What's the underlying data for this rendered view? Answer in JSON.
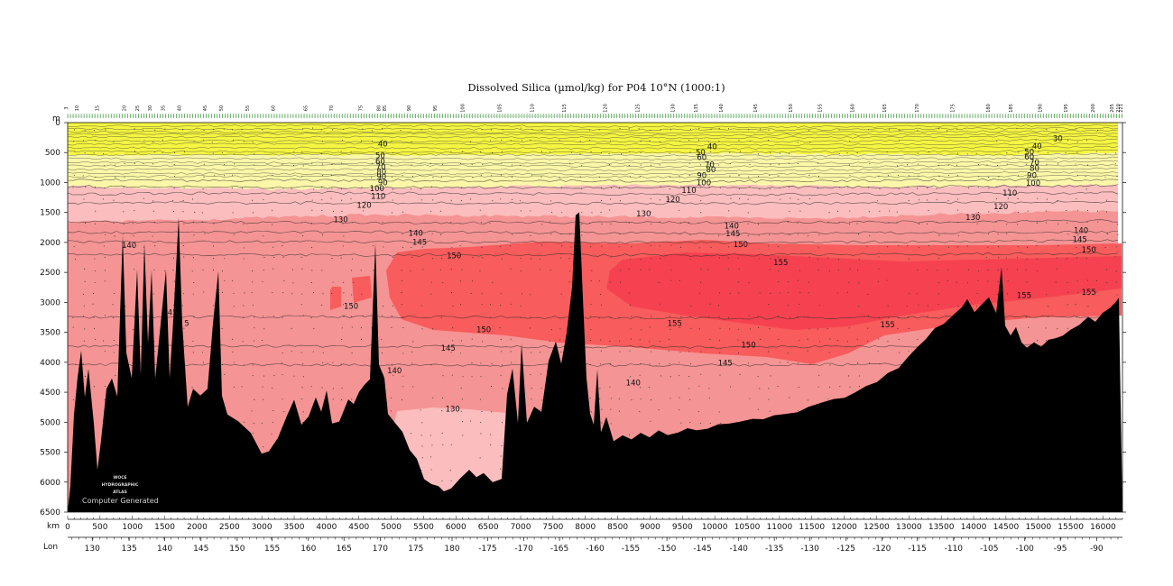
{
  "chart_data": {
    "type": "heatmap",
    "title": "Dissolved Silica (µmol/kg) for P04 10°N (1000:1)",
    "depth_unit": "m",
    "ylim": [
      0,
      6500
    ],
    "depth_ticks": [
      "0",
      "500",
      "1000",
      "1500",
      "2000",
      "2500",
      "3000",
      "3500",
      "4000",
      "4500",
      "5000",
      "5500",
      "6000",
      "6500"
    ],
    "depth_tick_values": [
      0,
      500,
      1000,
      1500,
      2000,
      2500,
      3000,
      3500,
      4000,
      4500,
      5000,
      5500,
      6000,
      6500
    ],
    "xlabel_km": "km",
    "xlim_km": [
      0,
      16300
    ],
    "km_ticks": [
      "0",
      "500",
      "1000",
      "1500",
      "2000",
      "2500",
      "3000",
      "3500",
      "4000",
      "4500",
      "5000",
      "5500",
      "6000",
      "6500",
      "7000",
      "7500",
      "8000",
      "8500",
      "9000",
      "9500",
      "10000",
      "10500",
      "11000",
      "11500",
      "12000",
      "12500",
      "13000",
      "13500",
      "14000",
      "14500",
      "15000",
      "15500",
      "16000"
    ],
    "km_tick_values": [
      0,
      500,
      1000,
      1500,
      2000,
      2500,
      3000,
      3500,
      4000,
      4500,
      5000,
      5500,
      6000,
      6500,
      7000,
      7500,
      8000,
      8500,
      9000,
      9500,
      10000,
      10500,
      11000,
      11500,
      12000,
      12500,
      13000,
      13500,
      14000,
      14500,
      15000,
      15500,
      16000
    ],
    "xlabel_lon": "Lon",
    "lon_ticks": [
      "130",
      "135",
      "140",
      "145",
      "150",
      "155",
      "160",
      "165",
      "170",
      "175",
      "180",
      "-175",
      "-170",
      "-165",
      "-160",
      "-155",
      "-150",
      "-145",
      "-140",
      "-135",
      "-130",
      "-125",
      "-120",
      "-115",
      "-110",
      "-105",
      "-100",
      "-95",
      "-90"
    ],
    "lon_tick_km": [
      380,
      950,
      1500,
      2060,
      2620,
      3160,
      3720,
      4270,
      4830,
      5380,
      5940,
      6490,
      7050,
      7600,
      8150,
      8700,
      9260,
      9810,
      10370,
      10920,
      11470,
      12030,
      12580,
      13130,
      13690,
      14240,
      14790,
      15340,
      15900
    ],
    "stations": [
      "3",
      "10",
      "15",
      "20",
      "25",
      "30",
      "35",
      "40",
      "45",
      "50",
      "55",
      "60",
      "65",
      "70",
      "75",
      "80",
      "85",
      "90",
      "95",
      "100",
      "105",
      "110",
      "115",
      "120",
      "125",
      "130",
      "135",
      "140",
      "145",
      "150",
      "155",
      "160",
      "165",
      "170",
      "175",
      "180",
      "185",
      "190",
      "195",
      "200",
      "205",
      "210",
      "221"
    ],
    "station_km": [
      0,
      170,
      480,
      900,
      1100,
      1300,
      1500,
      1750,
      2150,
      2400,
      2800,
      3200,
      3700,
      4100,
      4550,
      4830,
      4920,
      5300,
      5700,
      6130,
      6700,
      7200,
      7700,
      8330,
      8830,
      9380,
      9730,
      10120,
      10650,
      11200,
      11650,
      12150,
      12650,
      13150,
      13700,
      14250,
      14600,
      15050,
      15450,
      15870,
      16160,
      16260,
      16300
    ],
    "contour_levels": [
      0,
      10,
      20,
      30,
      40,
      50,
      60,
      70,
      80,
      90,
      100,
      110,
      120,
      130,
      140,
      145,
      150,
      155
    ],
    "color_bands": [
      {
        "range": "0-50",
        "color": "#f5f542"
      },
      {
        "range": "50-100",
        "color": "#fbf7a8"
      },
      {
        "range": "100-130",
        "color": "#fbbdbd"
      },
      {
        "range": "130-150",
        "color": "#f59494"
      },
      {
        "range": "150-155",
        "color": "#f85c5c"
      },
      {
        "range": ">155",
        "color": "#f64250"
      }
    ],
    "contour_labels": [
      {
        "text": "40",
        "km": 4870,
        "depth": 350
      },
      {
        "text": "50",
        "km": 4830,
        "depth": 550
      },
      {
        "text": "60",
        "km": 4830,
        "depth": 650
      },
      {
        "text": "70",
        "km": 4840,
        "depth": 740
      },
      {
        "text": "80",
        "km": 4850,
        "depth": 820
      },
      {
        "text": "90",
        "km": 4850,
        "depth": 900
      },
      {
        "text": "90",
        "km": 4870,
        "depth": 1000
      },
      {
        "text": "100",
        "km": 4780,
        "depth": 1100
      },
      {
        "text": "110",
        "km": 4800,
        "depth": 1230
      },
      {
        "text": "120",
        "km": 4580,
        "depth": 1380
      },
      {
        "text": "130",
        "km": 4220,
        "depth": 1620
      },
      {
        "text": "140",
        "km": 5380,
        "depth": 1840
      },
      {
        "text": "145",
        "km": 5440,
        "depth": 1990
      },
      {
        "text": "150",
        "km": 5970,
        "depth": 2220
      },
      {
        "text": "140",
        "km": 950,
        "depth": 2050
      },
      {
        "text": "150",
        "km": 4380,
        "depth": 3060
      },
      {
        "text": "150",
        "km": 6430,
        "depth": 3450
      },
      {
        "text": "145",
        "km": 5880,
        "depth": 3760
      },
      {
        "text": "140",
        "km": 5050,
        "depth": 4140
      },
      {
        "text": "130",
        "km": 5950,
        "depth": 4780
      },
      {
        "text": "140",
        "km": 8740,
        "depth": 4340
      },
      {
        "text": "40",
        "km": 9960,
        "depth": 400
      },
      {
        "text": "50",
        "km": 9780,
        "depth": 500
      },
      {
        "text": "60",
        "km": 9800,
        "depth": 580
      },
      {
        "text": "70",
        "km": 9920,
        "depth": 700
      },
      {
        "text": "80",
        "km": 9940,
        "depth": 780
      },
      {
        "text": "90",
        "km": 9800,
        "depth": 880
      },
      {
        "text": "100",
        "km": 9830,
        "depth": 1000
      },
      {
        "text": "110",
        "km": 9600,
        "depth": 1130
      },
      {
        "text": "120",
        "km": 9350,
        "depth": 1280
      },
      {
        "text": "130",
        "km": 8900,
        "depth": 1520
      },
      {
        "text": "140",
        "km": 10260,
        "depth": 1720
      },
      {
        "text": "145",
        "km": 10280,
        "depth": 1850
      },
      {
        "text": "150",
        "km": 10400,
        "depth": 2030
      },
      {
        "text": "155",
        "km": 11020,
        "depth": 2330
      },
      {
        "text": "155",
        "km": 9380,
        "depth": 3350
      },
      {
        "text": "150",
        "km": 10520,
        "depth": 3710
      },
      {
        "text": "145",
        "km": 10160,
        "depth": 4010
      },
      {
        "text": "155",
        "km": 12670,
        "depth": 3370
      },
      {
        "text": "30",
        "km": 15300,
        "depth": 260
      },
      {
        "text": "40",
        "km": 14980,
        "depth": 390
      },
      {
        "text": "50",
        "km": 14860,
        "depth": 490
      },
      {
        "text": "60",
        "km": 14860,
        "depth": 570
      },
      {
        "text": "70",
        "km": 14940,
        "depth": 660
      },
      {
        "text": "80",
        "km": 14940,
        "depth": 760
      },
      {
        "text": "90",
        "km": 14900,
        "depth": 880
      },
      {
        "text": "100",
        "km": 14920,
        "depth": 1010
      },
      {
        "text": "110",
        "km": 14560,
        "depth": 1170
      },
      {
        "text": "120",
        "km": 14420,
        "depth": 1400
      },
      {
        "text": "130",
        "km": 13990,
        "depth": 1580
      },
      {
        "text": "140",
        "km": 15660,
        "depth": 1800
      },
      {
        "text": "145",
        "km": 15640,
        "depth": 1950
      },
      {
        "text": "150",
        "km": 15780,
        "depth": 2120
      },
      {
        "text": "155",
        "km": 14780,
        "depth": 2880
      },
      {
        "text": "155",
        "km": 15780,
        "depth": 2830
      },
      {
        "text": "45",
        "km": 1620,
        "depth": 3170
      },
      {
        "text": "5",
        "km": 1840,
        "depth": 3350
      }
    ]
  },
  "watermark": {
    "logo_line1": "WOCE",
    "logo_line2": "HYDROGRAPHIC",
    "logo_line3": "ATLAS",
    "generated": "Computer Generated"
  }
}
